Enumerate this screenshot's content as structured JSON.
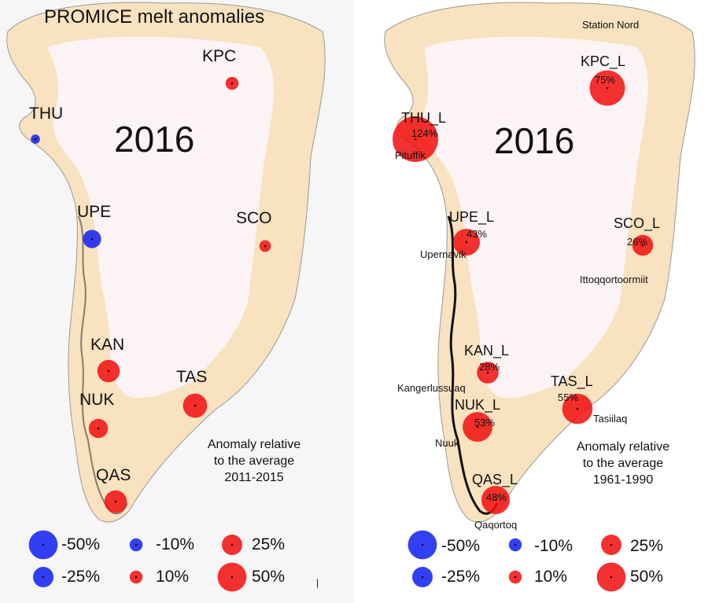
{
  "left": {
    "title": "PROMICE melt anomalies",
    "year": "2016",
    "note": [
      "Anomaly relative",
      "to the average",
      "2011-2015"
    ],
    "stations": [
      {
        "name": "KPC",
        "anomaly": 10
      },
      {
        "name": "THU",
        "anomaly": -5
      },
      {
        "name": "UPE",
        "anomaly": -20
      },
      {
        "name": "SCO",
        "anomaly": 8
      },
      {
        "name": "KAN",
        "anomaly": 30
      },
      {
        "name": "TAS",
        "anomaly": 35
      },
      {
        "name": "NUK",
        "anomaly": 22
      },
      {
        "name": "QAS",
        "anomaly": 30
      }
    ],
    "tick": "|"
  },
  "right": {
    "year": "2016",
    "note": [
      "Anomaly relative",
      "to the average",
      "1961-1990"
    ],
    "stations": [
      {
        "name": "KPC_L",
        "percent_label": "75%",
        "anomaly": 75
      },
      {
        "name": "THU_L",
        "percent_label": "124%",
        "anomaly": 124
      },
      {
        "name": "UPE_L",
        "percent_label": "43%",
        "anomaly": 43
      },
      {
        "name": "SCO_L",
        "percent_label": "26%",
        "anomaly": 26
      },
      {
        "name": "KAN_L",
        "percent_label": "28%",
        "anomaly": 28
      },
      {
        "name": "TAS_L",
        "percent_label": "55%",
        "anomaly": 55
      },
      {
        "name": "NUK_L",
        "percent_label": "53%",
        "anomaly": 53
      },
      {
        "name": "QAS_L",
        "percent_label": "48%",
        "anomaly": 48
      }
    ],
    "towns": [
      "Station Nord",
      "Pituffik",
      "Upernavik",
      "Ittoqqortoormiit",
      "Kangerlussuaq",
      "Tasiilaq",
      "Nuuk",
      "Qaqortoq"
    ]
  },
  "legend": [
    {
      "label": "-50%",
      "value": -50
    },
    {
      "label": "-10%",
      "value": -10
    },
    {
      "label": "25%",
      "value": 25
    },
    {
      "label": "-25%",
      "value": -25
    },
    {
      "label": "10%",
      "value": 10
    },
    {
      "label": "50%",
      "value": 50
    }
  ],
  "colors": {
    "ice": "#fcf4f4",
    "land": "#f8e2bf",
    "coast": "#111111",
    "positive": "#f20d0d",
    "negative": "#0d1ff2",
    "background_left": "#f6f6f6",
    "background_right": "#ffffff"
  }
}
